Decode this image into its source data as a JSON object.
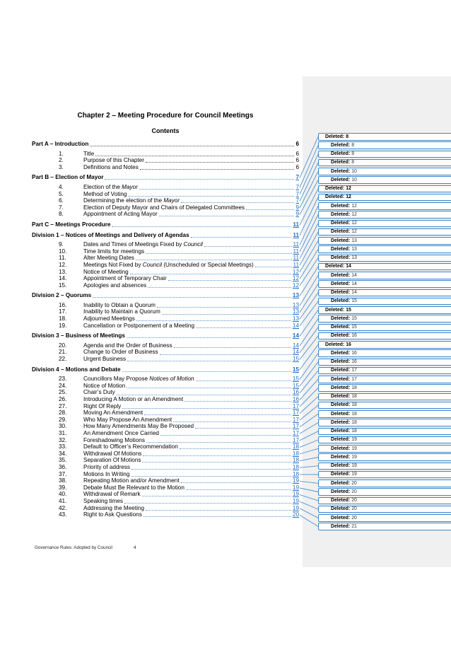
{
  "doc": {
    "title": "Chapter 2 – Meeting Procedure for Council Meetings",
    "contents_heading": "Contents",
    "footer": {
      "left_text": "Governance Rules: Adopted by Council",
      "page_number": "4"
    }
  },
  "colors": {
    "changed_text": "#1f6ec6",
    "box_border": "#3a88cc",
    "connector": "#4a94d8",
    "panel_background": "#f0f0f0"
  },
  "toc": [
    {
      "type": "part",
      "label": "Part A – Introduction",
      "page": "6",
      "changed": false
    },
    {
      "type": "item",
      "num": "1.",
      "label": "Title",
      "page": "6",
      "changed": false
    },
    {
      "type": "item",
      "num": "2.",
      "label": "Purpose of this Chapter",
      "page": "6",
      "changed": false
    },
    {
      "type": "item",
      "num": "3.",
      "label": "Definitions and Notes",
      "page": "6",
      "changed": false
    },
    {
      "type": "part",
      "label": "Part B – Election of Mayor",
      "page": "7",
      "changed": true
    },
    {
      "type": "item",
      "num": "4.",
      "label": "Election of the Mayor",
      "italic": "Mayor",
      "page": "7",
      "changed": true
    },
    {
      "type": "item",
      "num": "5.",
      "label": "Method of Voting",
      "page": "7",
      "changed": true
    },
    {
      "type": "item",
      "num": "6.",
      "label": "Determining the election of the Mayor",
      "italic": "Mayor",
      "page": "7",
      "changed": true
    },
    {
      "type": "item",
      "num": "7.",
      "label": "Election of Deputy Mayor and Chairs of Delegated Committees",
      "page": "9",
      "changed": true
    },
    {
      "type": "item",
      "num": "8.",
      "label": "Appointment of Acting Mayor",
      "page": "9",
      "changed": true
    },
    {
      "type": "part",
      "label": "Part C – Meetings Procedure",
      "page": "11",
      "changed": true
    },
    {
      "type": "division",
      "label": "Division 1 – Notices of Meetings and Delivery of Agendas",
      "page": "11",
      "changed": true
    },
    {
      "type": "item",
      "num": "9.",
      "label": "Dates and Times of Meetings Fixed by Council",
      "italic": "Council",
      "page": "11",
      "changed": true
    },
    {
      "type": "item",
      "num": "10.",
      "label": "Time limits for meetings",
      "page": "11",
      "changed": true
    },
    {
      "type": "item",
      "num": "11.",
      "label": "Alter Meeting Dates",
      "page": "11",
      "changed": true
    },
    {
      "type": "item",
      "num": "12.",
      "label": "Meetings Not Fixed by Council (Unscheduled or Special Meetings)",
      "italic": "Council",
      "page": "11",
      "changed": true
    },
    {
      "type": "item",
      "num": "13.",
      "label": "Notice of Meeting",
      "page": "12",
      "changed": true
    },
    {
      "type": "item",
      "num": "14.",
      "label": "Appointment of Temporary Chair",
      "page": "12",
      "changed": true
    },
    {
      "type": "item",
      "num": "15.",
      "label": "Apologies and absences",
      "page": "12",
      "changed": true
    },
    {
      "type": "division",
      "label": "Division 2 – Quorums",
      "page": "13",
      "changed": true
    },
    {
      "type": "item",
      "num": "16.",
      "label": "Inability to Obtain a Quorum",
      "page": "13",
      "changed": true
    },
    {
      "type": "item",
      "num": "17.",
      "label": "Inability to Maintain a Quorum",
      "page": "13",
      "changed": true
    },
    {
      "type": "item",
      "num": "18.",
      "label": "Adjourned Meetings",
      "page": "13",
      "changed": true
    },
    {
      "type": "item",
      "num": "19.",
      "label": "Cancellation or Postponement of a Meeting",
      "page": "14",
      "changed": true
    },
    {
      "type": "division",
      "label": "Division 3 – Business of Meetings",
      "page": "14",
      "changed": true
    },
    {
      "type": "item",
      "num": "20.",
      "label": "Agenda and the Order of Business",
      "page": "14",
      "changed": true
    },
    {
      "type": "item",
      "num": "21.",
      "label": "Change to Order of Business",
      "page": "14",
      "changed": true
    },
    {
      "type": "item",
      "num": "22.",
      "label": "Urgent Business",
      "page": "15",
      "changed": true
    },
    {
      "type": "division",
      "label": "Division 4 – Motions and Debate",
      "page": "15",
      "changed": true
    },
    {
      "type": "item",
      "num": "23.",
      "label": "Councillors May Propose Notices of Motion",
      "italic": "Notices of Motion",
      "page": "15",
      "changed": true
    },
    {
      "type": "item",
      "num": "24.",
      "label": "Notice of Motion",
      "page": "15",
      "changed": true
    },
    {
      "type": "item",
      "num": "25.",
      "label": "Chair’s Duty",
      "page": "16",
      "changed": true
    },
    {
      "type": "item",
      "num": "26.",
      "label": "Introducing A Motion or an Amendment",
      "page": "16",
      "changed": true
    },
    {
      "type": "item",
      "num": "27.",
      "label": "Right Of Reply",
      "page": "17",
      "changed": true
    },
    {
      "type": "item",
      "num": "28.",
      "label": "Moving An Amendment",
      "page": "17",
      "changed": true
    },
    {
      "type": "item",
      "num": "29.",
      "label": "Who May Propose An Amendment",
      "page": "17",
      "changed": true
    },
    {
      "type": "item",
      "num": "30.",
      "label": "How Many Amendments May Be Proposed",
      "page": "17",
      "changed": true
    },
    {
      "type": "item",
      "num": "31.",
      "label": "An Amendment Once Carried",
      "page": "17",
      "changed": true
    },
    {
      "type": "item",
      "num": "32.",
      "label": "Foreshadowing Motions",
      "page": "17",
      "changed": true
    },
    {
      "type": "item",
      "num": "33.",
      "label": "Default to Officer’s Recommendation",
      "page": "18",
      "changed": true
    },
    {
      "type": "item",
      "num": "34.",
      "label": "Withdrawal Of Motions",
      "page": "18",
      "changed": true
    },
    {
      "type": "item",
      "num": "35.",
      "label": "Separation Of Motions",
      "page": "18",
      "changed": true
    },
    {
      "type": "item",
      "num": "36.",
      "label": "Priority of address",
      "page": "18",
      "changed": true
    },
    {
      "type": "item",
      "num": "37.",
      "label": "Motions In Writing",
      "page": "18",
      "changed": true
    },
    {
      "type": "item",
      "num": "38.",
      "label": "Repeating Motion and/or Amendment",
      "page": "19",
      "changed": true
    },
    {
      "type": "item",
      "num": "39.",
      "label": "Debate Must Be Relevant to the Motion",
      "page": "19",
      "changed": true
    },
    {
      "type": "item",
      "num": "40.",
      "label": "Withdrawal of Remark",
      "page": "19",
      "changed": true
    },
    {
      "type": "item",
      "num": "41.",
      "label": "Speaking times",
      "page": "19",
      "changed": true
    },
    {
      "type": "item",
      "num": "42.",
      "label": "Addressing the Meeting",
      "page": "19",
      "changed": true
    },
    {
      "type": "item",
      "num": "43.",
      "label": "Right to Ask Questions",
      "page": "20",
      "changed": true
    }
  ],
  "revisions": [
    {
      "label": "Deleted:",
      "value": "8",
      "heading": true
    },
    {
      "label": "Deleted:",
      "value": "8",
      "heading": false
    },
    {
      "label": "Deleted:",
      "value": "8",
      "heading": false
    },
    {
      "label": "Deleted:",
      "value": "8",
      "heading": false
    },
    {
      "label": "Deleted:",
      "value": "10",
      "heading": false
    },
    {
      "label": "Deleted:",
      "value": "10",
      "heading": false
    },
    {
      "label": "Deleted:",
      "value": "12",
      "heading": true
    },
    {
      "label": "Deleted:",
      "value": "12",
      "heading": true
    },
    {
      "label": "Deleted:",
      "value": "12",
      "heading": false
    },
    {
      "label": "Deleted:",
      "value": "12",
      "heading": false
    },
    {
      "label": "Deleted:",
      "value": "12",
      "heading": false
    },
    {
      "label": "Deleted:",
      "value": "12",
      "heading": false
    },
    {
      "label": "Deleted:",
      "value": "13",
      "heading": false
    },
    {
      "label": "Deleted:",
      "value": "13",
      "heading": false
    },
    {
      "label": "Deleted:",
      "value": "13",
      "heading": false
    },
    {
      "label": "Deleted:",
      "value": "14",
      "heading": true
    },
    {
      "label": "Deleted:",
      "value": "14",
      "heading": false
    },
    {
      "label": "Deleted:",
      "value": "14",
      "heading": false
    },
    {
      "label": "Deleted:",
      "value": "14",
      "heading": false
    },
    {
      "label": "Deleted:",
      "value": "15",
      "heading": false
    },
    {
      "label": "Deleted:",
      "value": "15",
      "heading": true
    },
    {
      "label": "Deleted:",
      "value": "15",
      "heading": false
    },
    {
      "label": "Deleted:",
      "value": "15",
      "heading": false
    },
    {
      "label": "Deleted:",
      "value": "16",
      "heading": false
    },
    {
      "label": "Deleted:",
      "value": "16",
      "heading": true
    },
    {
      "label": "Deleted:",
      "value": "16",
      "heading": false
    },
    {
      "label": "Deleted:",
      "value": "16",
      "heading": false
    },
    {
      "label": "Deleted:",
      "value": "17",
      "heading": false
    },
    {
      "label": "Deleted:",
      "value": "17",
      "heading": false
    },
    {
      "label": "Deleted:",
      "value": "18",
      "heading": false
    },
    {
      "label": "Deleted:",
      "value": "18",
      "heading": false
    },
    {
      "label": "Deleted:",
      "value": "18",
      "heading": false
    },
    {
      "label": "Deleted:",
      "value": "18",
      "heading": false
    },
    {
      "label": "Deleted:",
      "value": "18",
      "heading": false
    },
    {
      "label": "Deleted:",
      "value": "18",
      "heading": false
    },
    {
      "label": "Deleted:",
      "value": "19",
      "heading": false
    },
    {
      "label": "Deleted:",
      "value": "19",
      "heading": false
    },
    {
      "label": "Deleted:",
      "value": "19",
      "heading": false
    },
    {
      "label": "Deleted:",
      "value": "19",
      "heading": false
    },
    {
      "label": "Deleted:",
      "value": "19",
      "heading": false
    },
    {
      "label": "Deleted:",
      "value": "20",
      "heading": false
    },
    {
      "label": "Deleted:",
      "value": "20",
      "heading": false
    },
    {
      "label": "Deleted:",
      "value": "20",
      "heading": false
    },
    {
      "label": "Deleted:",
      "value": "20",
      "heading": false
    },
    {
      "label": "Deleted:",
      "value": "20",
      "heading": false
    },
    {
      "label": "Deleted:",
      "value": "21",
      "heading": false
    }
  ]
}
